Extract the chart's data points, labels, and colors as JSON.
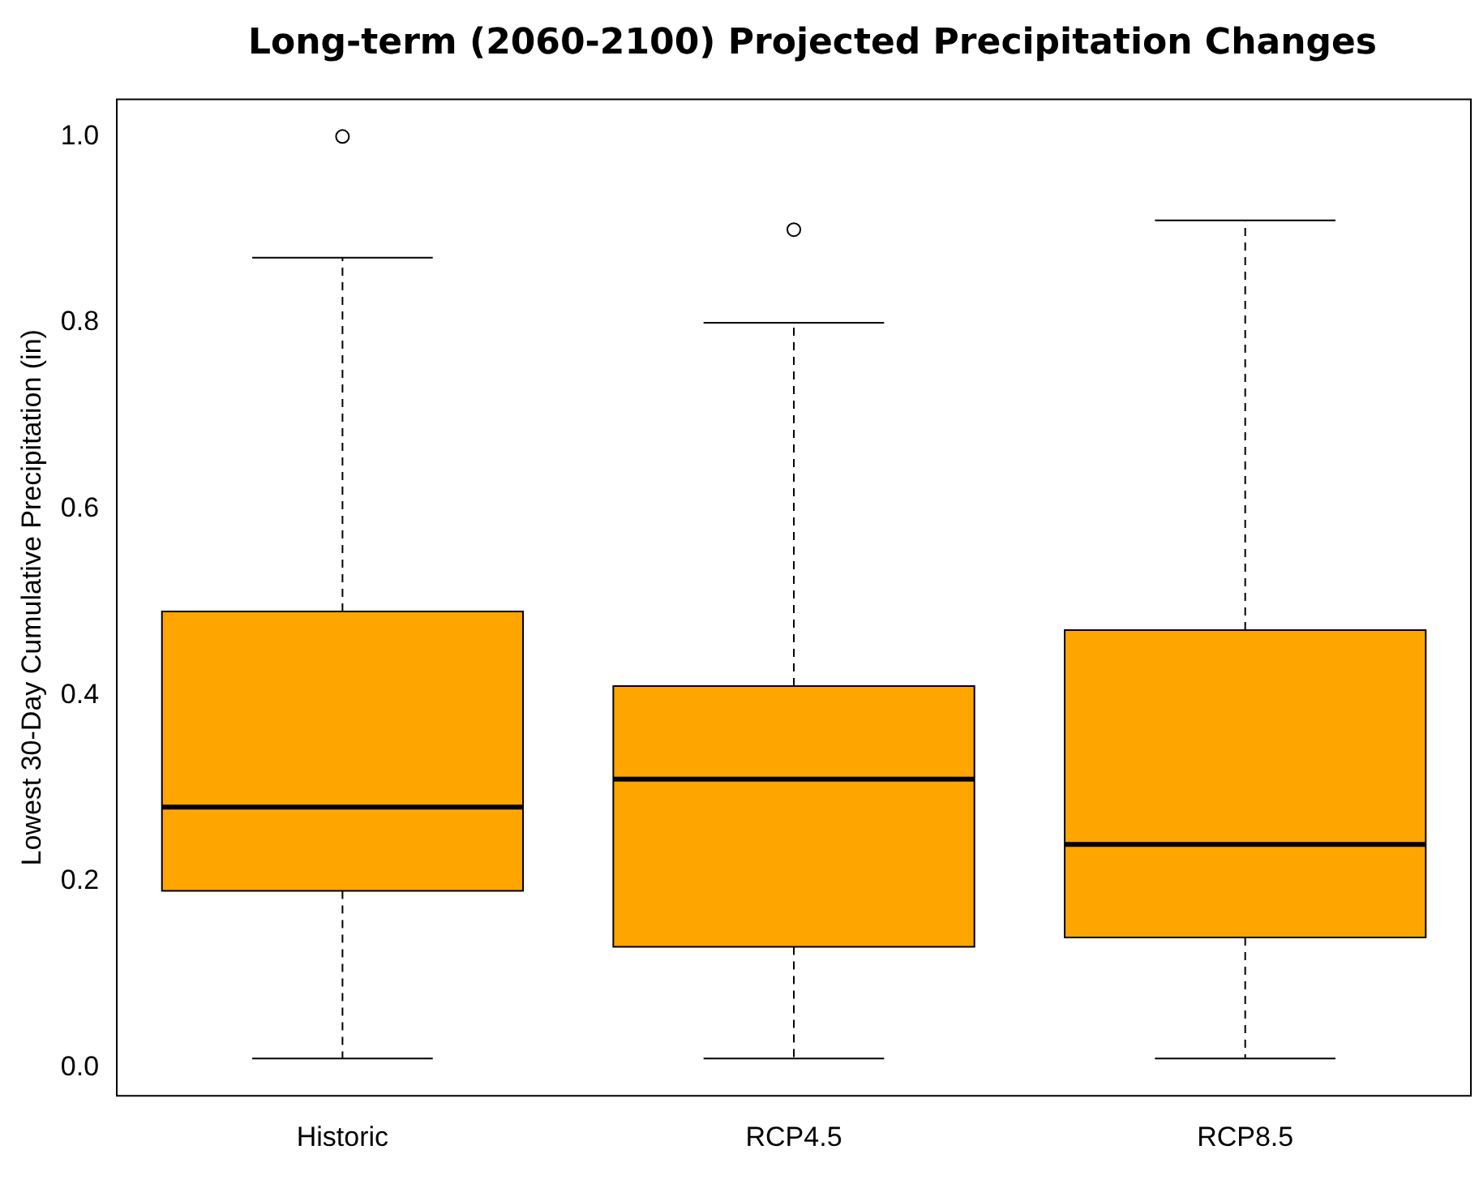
{
  "chart_data": {
    "type": "box",
    "title": "Long-term (2060-2100) Projected Precipitation Changes",
    "ylabel": "Lowest 30-Day Cumulative Precipitation (in)",
    "categories": [
      "Historic",
      "RCP4.5",
      "RCP8.5"
    ],
    "color": "#ffa500",
    "boxes": [
      {
        "low": 0.01,
        "q1": 0.19,
        "median": 0.28,
        "q3": 0.49,
        "high": 0.87,
        "outliers": [
          1.0
        ]
      },
      {
        "low": 0.01,
        "q1": 0.13,
        "median": 0.31,
        "q3": 0.41,
        "high": 0.8,
        "outliers": [
          0.9
        ]
      },
      {
        "low": 0.01,
        "q1": 0.14,
        "median": 0.24,
        "q3": 0.47,
        "high": 0.91
      }
    ],
    "ylim": [
      -0.03,
      1.04
    ],
    "yticks": [
      {
        "value": 0,
        "label": "0.0"
      },
      {
        "value": 0.2,
        "label": "0.2"
      },
      {
        "value": 0.4,
        "label": "0.4"
      },
      {
        "value": 0.6,
        "label": "0.6"
      },
      {
        "value": 0.8,
        "label": "0.8"
      },
      {
        "value": 1,
        "label": "1.0"
      }
    ],
    "grid": false,
    "legend": false
  }
}
